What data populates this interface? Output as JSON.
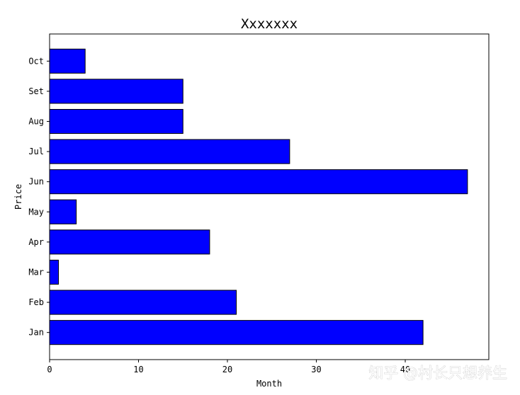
{
  "chart_data": {
    "type": "bar",
    "orientation": "horizontal",
    "title": "Xxxxxxx",
    "xlabel": "Month",
    "ylabel": "Price",
    "categories": [
      "Jan",
      "Feb",
      "Mar",
      "Apr",
      "May",
      "Jun",
      "Jul",
      "Aug",
      "Set",
      "Oct"
    ],
    "values": [
      42,
      21,
      1,
      18,
      3,
      47,
      27,
      15,
      15,
      4
    ],
    "xlim": [
      0,
      49.4
    ],
    "xticks": [
      0,
      10,
      20,
      30,
      40
    ],
    "grid": false,
    "bar_color": "#0000ff",
    "bar_edge_color": "#000000"
  },
  "watermark": {
    "text": "知乎 @村长只想养生"
  }
}
